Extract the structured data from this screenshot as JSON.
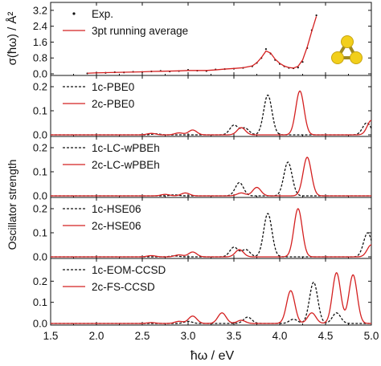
{
  "figure": {
    "xlabel": "ħω / eV",
    "ylabel_top": "σ(ħω) / Å²",
    "ylabel_shared": "Oscillator strength",
    "x_ticks": [
      "1.5",
      "2.0",
      "2.5",
      "3.0",
      "3.5",
      "4.0",
      "4.5",
      "5.0"
    ],
    "colors": {
      "red": "#d42020",
      "black": "#111111",
      "inset_atom": "#f2cf1b",
      "inset_bond": "#a08a20"
    },
    "inset_icon": "trimer-molecule-icon"
  },
  "chart_data": [
    {
      "type": "line",
      "panel": "experiment",
      "xlim": [
        1.5,
        5.0
      ],
      "ylim": [
        0,
        3.6
      ],
      "y_ticks": [
        "0.0",
        "0.8",
        "1.6",
        "2.4",
        "3.2"
      ],
      "legend_placement": "top-left",
      "series": [
        {
          "name": "Exp.",
          "style": "points",
          "color": "#111111",
          "x": [
            1.9,
            2.0,
            2.1,
            2.2,
            2.3,
            2.4,
            2.5,
            2.6,
            2.7,
            2.8,
            2.9,
            3.0,
            3.1,
            3.2,
            3.3,
            3.4,
            3.5,
            3.6,
            3.7,
            3.75,
            3.8,
            3.85,
            3.9,
            3.95,
            4.0,
            4.05,
            4.1,
            4.15,
            4.2,
            4.25,
            4.3,
            4.35,
            4.4
          ],
          "y": [
            0.02,
            0.06,
            0.05,
            0.08,
            0.07,
            0.1,
            0.09,
            0.12,
            0.15,
            0.12,
            0.14,
            0.2,
            0.16,
            0.14,
            0.22,
            0.24,
            0.26,
            0.3,
            0.38,
            0.55,
            0.8,
            1.25,
            1.02,
            0.7,
            0.5,
            0.38,
            0.3,
            0.28,
            0.32,
            0.6,
            1.3,
            2.2,
            2.95
          ]
        },
        {
          "name": "3pt running average",
          "style": "line",
          "color": "#d42020",
          "x": [
            1.9,
            2.0,
            2.1,
            2.2,
            2.3,
            2.4,
            2.5,
            2.6,
            2.7,
            2.8,
            2.9,
            3.0,
            3.1,
            3.2,
            3.3,
            3.4,
            3.5,
            3.6,
            3.7,
            3.75,
            3.8,
            3.85,
            3.9,
            3.95,
            4.0,
            4.05,
            4.1,
            4.15,
            4.2,
            4.25,
            4.3,
            4.35,
            4.4
          ],
          "y": [
            0.03,
            0.05,
            0.06,
            0.07,
            0.08,
            0.09,
            0.1,
            0.12,
            0.13,
            0.14,
            0.15,
            0.17,
            0.17,
            0.17,
            0.2,
            0.24,
            0.27,
            0.31,
            0.4,
            0.56,
            0.82,
            1.15,
            1.05,
            0.74,
            0.53,
            0.39,
            0.32,
            0.29,
            0.38,
            0.7,
            1.35,
            2.15,
            2.9
          ]
        }
      ]
    },
    {
      "type": "line",
      "panel": "pbe0",
      "xlim": [
        1.5,
        5.0
      ],
      "ylim": [
        0,
        0.24
      ],
      "y_ticks": [
        "0.0",
        "0.1",
        "0.2"
      ],
      "legend_placement": "top-left",
      "series": [
        {
          "name": "1c-PBE0",
          "style": "dashed",
          "color": "#111111",
          "peaks": [
            [
              2.65,
              0.004
            ],
            [
              3.5,
              0.04
            ],
            [
              3.62,
              0.028
            ],
            [
              3.87,
              0.165
            ],
            [
              4.95,
              0.05
            ]
          ]
        },
        {
          "name": "2c-PBE0",
          "style": "solid",
          "color": "#d42020",
          "peaks": [
            [
              2.6,
              0.006
            ],
            [
              2.9,
              0.008
            ],
            [
              3.05,
              0.02
            ],
            [
              3.58,
              0.03
            ],
            [
              4.22,
              0.182
            ],
            [
              5.0,
              0.06
            ]
          ]
        }
      ]
    },
    {
      "type": "line",
      "panel": "lc-wpbeh",
      "xlim": [
        1.5,
        5.0
      ],
      "ylim": [
        0,
        0.24
      ],
      "y_ticks": [
        "0.0",
        "0.1",
        "0.2"
      ],
      "legend_placement": "top-left",
      "series": [
        {
          "name": "1c-LC-wPBEh",
          "style": "dashed",
          "color": "#111111",
          "peaks": [
            [
              2.85,
              0.004
            ],
            [
              3.56,
              0.055
            ],
            [
              4.09,
              0.14
            ]
          ]
        },
        {
          "name": "2c-LC-wPBEh",
          "style": "solid",
          "color": "#d42020",
          "peaks": [
            [
              2.75,
              0.006
            ],
            [
              2.97,
              0.012
            ],
            [
              3.58,
              0.012
            ],
            [
              3.75,
              0.035
            ],
            [
              4.3,
              0.16
            ]
          ]
        }
      ]
    },
    {
      "type": "line",
      "panel": "hse06",
      "xlim": [
        1.5,
        5.0
      ],
      "ylim": [
        0,
        0.24
      ],
      "y_ticks": [
        "0.0",
        "0.1",
        "0.2"
      ],
      "legend_placement": "top-left",
      "series": [
        {
          "name": "1c-HSE06",
          "style": "dashed",
          "color": "#111111",
          "peaks": [
            [
              2.85,
              0.004
            ],
            [
              3.5,
              0.04
            ],
            [
              3.63,
              0.03
            ],
            [
              3.87,
              0.18
            ],
            [
              4.96,
              0.1
            ]
          ]
        },
        {
          "name": "2c-HSE06",
          "style": "solid",
          "color": "#d42020",
          "peaks": [
            [
              2.6,
              0.005
            ],
            [
              2.9,
              0.008
            ],
            [
              3.05,
              0.02
            ],
            [
              3.56,
              0.03
            ],
            [
              4.2,
              0.2
            ],
            [
              5.0,
              0.05
            ]
          ]
        }
      ]
    },
    {
      "type": "line",
      "panel": "ccsd",
      "xlim": [
        1.5,
        5.0
      ],
      "ylim": [
        0,
        0.3
      ],
      "y_ticks": [
        "0.0",
        "0.1",
        "0.2"
      ],
      "legend_placement": "top-left",
      "series": [
        {
          "name": "1c-EOM-CCSD",
          "style": "dashed",
          "color": "#111111",
          "peaks": [
            [
              3.0,
              0.01
            ],
            [
              3.65,
              0.03
            ],
            [
              4.15,
              0.02
            ],
            [
              4.37,
              0.195
            ],
            [
              4.62,
              0.05
            ]
          ]
        },
        {
          "name": "2c-FS-CCSD",
          "style": "solid",
          "color": "#d42020",
          "peaks": [
            [
              2.6,
              0.004
            ],
            [
              2.9,
              0.01
            ],
            [
              3.05,
              0.035
            ],
            [
              3.37,
              0.05
            ],
            [
              3.58,
              0.015
            ],
            [
              4.12,
              0.155
            ],
            [
              4.35,
              0.05
            ],
            [
              4.62,
              0.24
            ],
            [
              4.8,
              0.23
            ]
          ]
        }
      ]
    }
  ]
}
